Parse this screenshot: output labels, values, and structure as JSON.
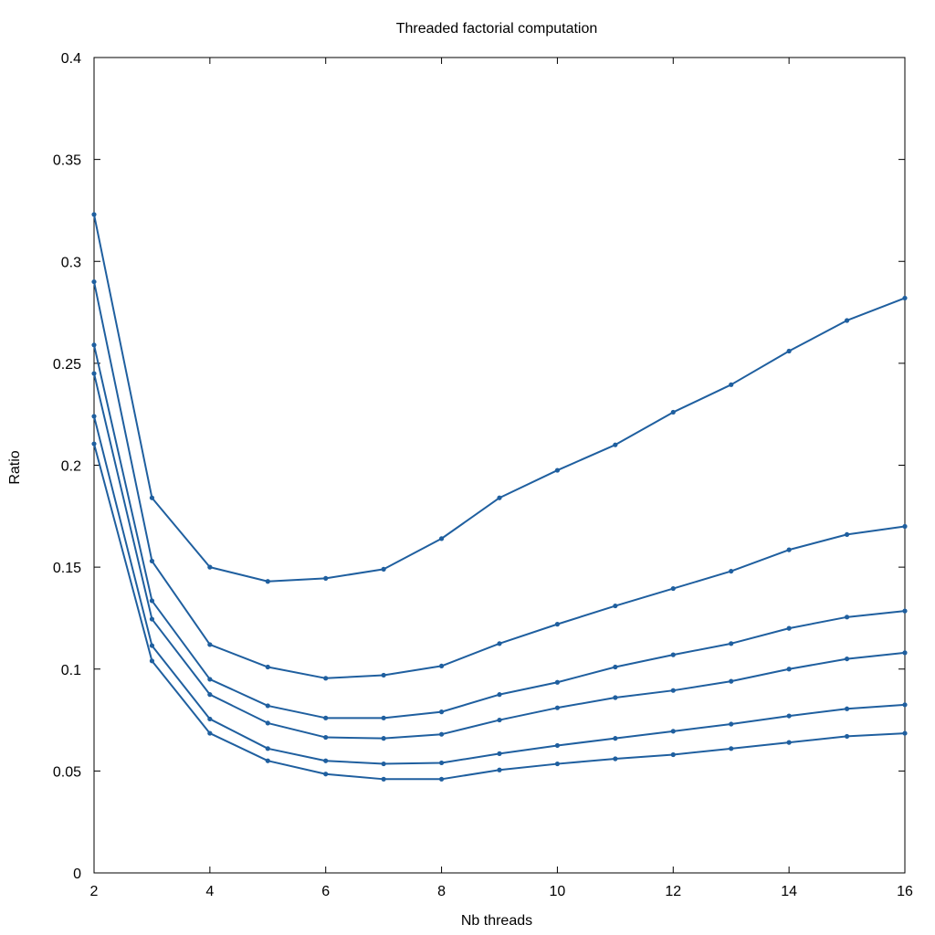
{
  "chart_data": {
    "type": "line",
    "title": "Threaded factorial computation",
    "xlabel": "Nb threads",
    "ylabel": "Ratio",
    "xlim": [
      2,
      16
    ],
    "ylim": [
      0,
      0.4
    ],
    "x_ticks": [
      2,
      4,
      6,
      8,
      10,
      12,
      14,
      16
    ],
    "y_ticks": [
      0,
      0.05,
      0.1,
      0.15,
      0.2,
      0.25,
      0.3,
      0.35,
      0.4
    ],
    "y_tick_labels": [
      "0",
      "0.05",
      "0.1",
      "0.15",
      "0.2",
      "0.25",
      "0.3",
      "0.35",
      "0.4"
    ],
    "x_tick_labels": [
      "2",
      "4",
      "6",
      "8",
      "10",
      "12",
      "14",
      "16"
    ],
    "grid": false,
    "line_color": "#1f5f9f",
    "x": [
      2,
      3,
      4,
      5,
      6,
      7,
      8,
      9,
      10,
      11,
      12,
      13,
      14,
      15,
      16
    ],
    "series": [
      {
        "values": [
          0.323,
          0.184,
          0.15,
          0.143,
          0.1445,
          0.149,
          0.164,
          0.184,
          0.1975,
          0.21,
          0.226,
          0.2395,
          0.256,
          0.271,
          0.282
        ]
      },
      {
        "values": [
          0.29,
          0.153,
          0.112,
          0.101,
          0.0955,
          0.097,
          0.1015,
          0.1125,
          0.122,
          0.131,
          0.1395,
          0.148,
          0.1585,
          0.166,
          0.17
        ]
      },
      {
        "values": [
          0.259,
          0.1335,
          0.095,
          0.082,
          0.076,
          0.076,
          0.079,
          0.0875,
          0.0935,
          0.101,
          0.107,
          0.1125,
          0.12,
          0.1255,
          0.1285
        ]
      },
      {
        "values": [
          0.245,
          0.1245,
          0.0875,
          0.0735,
          0.0665,
          0.066,
          0.068,
          0.075,
          0.081,
          0.086,
          0.0895,
          0.094,
          0.1,
          0.105,
          0.108
        ]
      },
      {
        "values": [
          0.224,
          0.1115,
          0.0755,
          0.061,
          0.055,
          0.0535,
          0.054,
          0.0585,
          0.0625,
          0.066,
          0.0695,
          0.073,
          0.077,
          0.0805,
          0.0825
        ]
      },
      {
        "values": [
          0.2105,
          0.104,
          0.0685,
          0.055,
          0.0485,
          0.046,
          0.046,
          0.0505,
          0.0535,
          0.056,
          0.058,
          0.061,
          0.064,
          0.067,
          0.0685
        ]
      }
    ]
  }
}
